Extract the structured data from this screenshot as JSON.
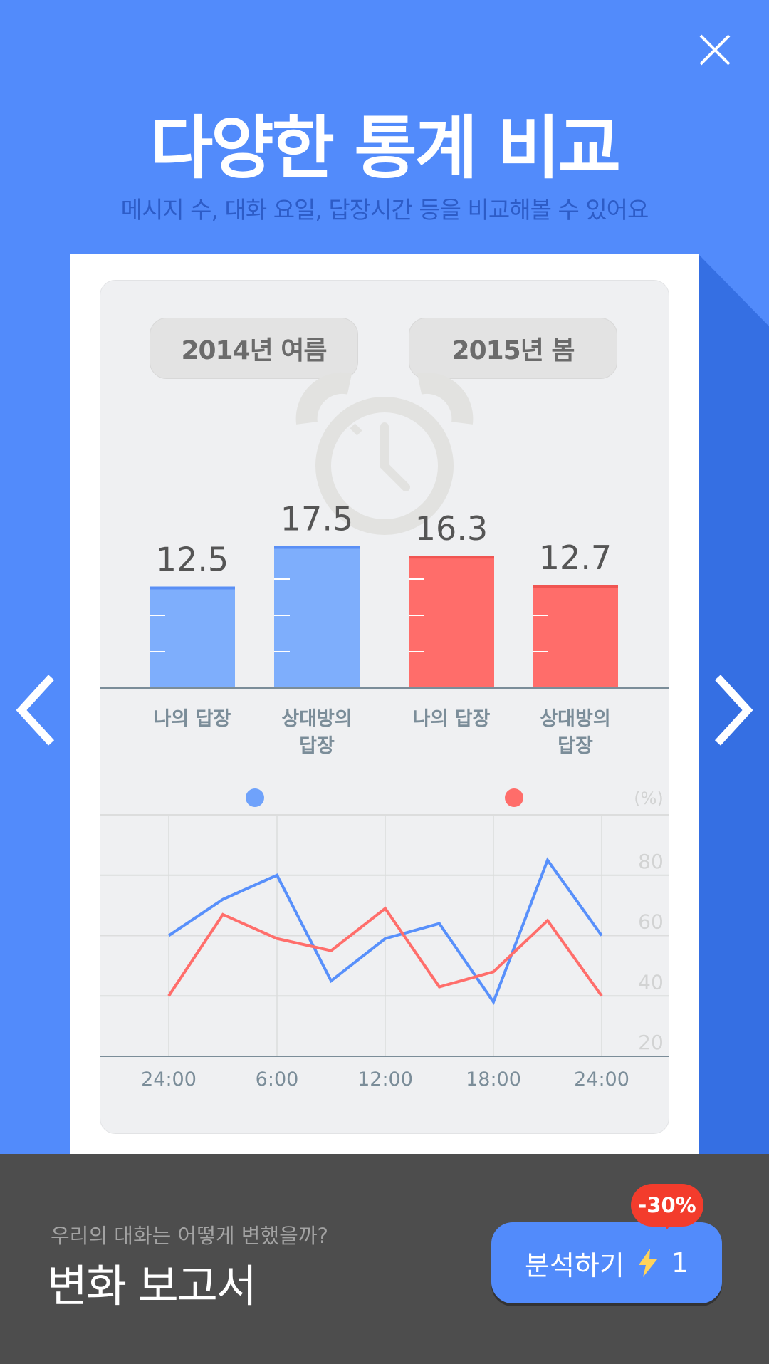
{
  "header": {
    "title": "다양한 통계 비교",
    "subtitle": "메시지 수, 대화 요일, 답장시간 등을 비교해볼 수 있어요",
    "close_icon": "close-icon"
  },
  "periods": [
    "2014년 여름",
    "2015년 봄"
  ],
  "colors": {
    "background": "#528bfb",
    "blue": "#6fa2fb",
    "red": "#ff6d6a",
    "blue_line": "#5890fb",
    "red_line": "#ff6e6b"
  },
  "chart_data": [
    {
      "type": "bar",
      "categories": [
        "나의 답장",
        "상대방의 답장",
        "나의 답장",
        "상대방의 답장"
      ],
      "category_lines": [
        [
          "나의 답장"
        ],
        [
          "상대방의",
          "답장"
        ],
        [
          "나의 답장"
        ],
        [
          "상대방의",
          "답장"
        ]
      ],
      "values": [
        12.5,
        17.5,
        16.3,
        12.7
      ],
      "value_labels": [
        "12.5",
        "17.5",
        "16.3",
        "12.7"
      ],
      "series_colors": [
        "#7eaefc",
        "#7eaefc",
        "#ff6d6a",
        "#ff6d6a"
      ]
    },
    {
      "type": "line",
      "x_ticks": [
        "24:00",
        "6:00",
        "12:00",
        "18:00",
        "24:00"
      ],
      "y_unit": "(%)",
      "y_ticks": [
        "80",
        "60",
        "40",
        "20"
      ],
      "ylim": [
        20,
        100
      ],
      "grid": true,
      "series": [
        {
          "color": "#5890fb",
          "values": [
            60,
            72,
            80,
            45,
            59,
            64,
            38,
            85,
            60
          ]
        },
        {
          "color": "#ff6e6b",
          "values": [
            40,
            67,
            59,
            55,
            69,
            43,
            48,
            65,
            40
          ]
        }
      ]
    }
  ],
  "footer": {
    "question": "우리의 대화는 어떻게 변했을까?",
    "report_title": "변화 보고서",
    "analyze_label": "분석하기",
    "cost": "1",
    "discount_badge": "-30%"
  }
}
